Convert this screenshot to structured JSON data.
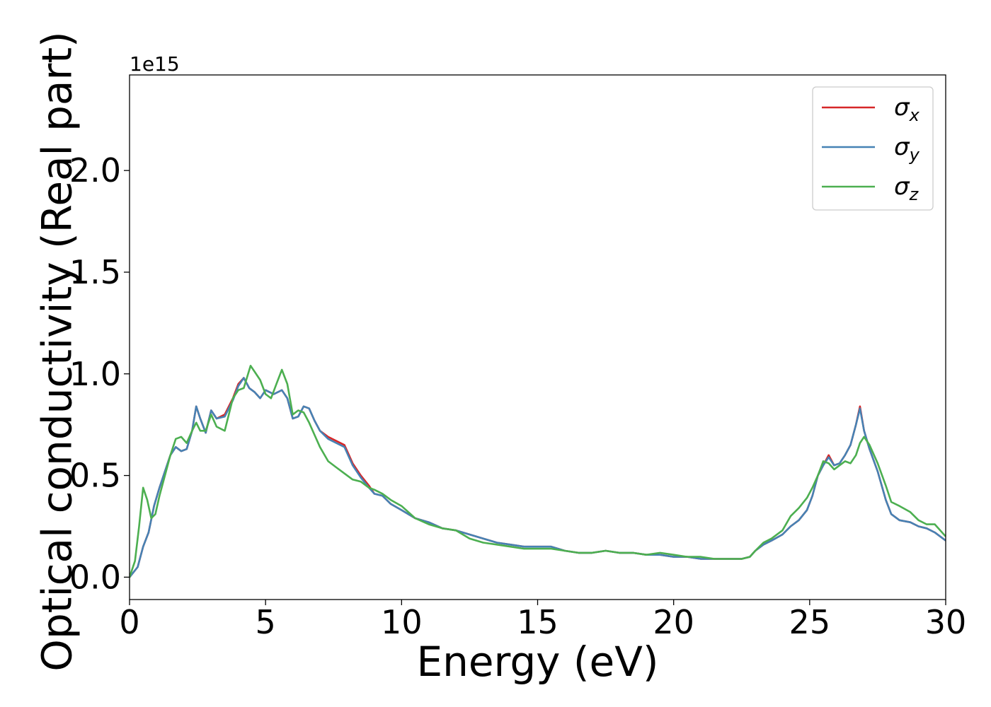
{
  "chart_data": {
    "type": "line",
    "title": "",
    "xlabel": "Energy (eV)",
    "ylabel": "Optical conductivity (Real part)",
    "y_offset_text": "1e15",
    "y_multiplier": 1000000000000000.0,
    "xlim": [
      0,
      30
    ],
    "ylim": [
      -0.11,
      2.47
    ],
    "x_ticks": [
      0,
      5,
      10,
      15,
      20,
      25,
      30
    ],
    "x_tick_labels": [
      "0",
      "5",
      "10",
      "15",
      "20",
      "25",
      "30"
    ],
    "y_ticks": [
      0.0,
      0.5,
      1.0,
      1.5,
      2.0
    ],
    "y_tick_labels": [
      "0.0",
      "0.5",
      "1.0",
      "1.5",
      "2.0"
    ],
    "grid": false,
    "legend_position": "top-right",
    "legend": [
      {
        "symbol": "σ",
        "sub": "x",
        "color": "#d62728"
      },
      {
        "symbol": "σ",
        "sub": "y",
        "color": "#4682b4"
      },
      {
        "symbol": "σ",
        "sub": "z",
        "color": "#4caf50"
      }
    ],
    "series": [
      {
        "color": "#d62728",
        "x": [
          0,
          0.3,
          0.5,
          0.7,
          0.9,
          1.1,
          1.3,
          1.5,
          1.7,
          1.9,
          2.1,
          2.3,
          2.45,
          2.6,
          2.8,
          3.0,
          3.2,
          3.5,
          3.8,
          4.0,
          4.2,
          4.4,
          4.6,
          4.8,
          5.0,
          5.3,
          5.6,
          5.8,
          6.0,
          6.2,
          6.4,
          6.6,
          6.8,
          7.0,
          7.3,
          7.6,
          7.9,
          8.2,
          8.5,
          8.8,
          9.0,
          9.3,
          9.6,
          10.0,
          10.5,
          11.0,
          11.5,
          12.0,
          12.5,
          13.0,
          13.5,
          14.0,
          14.5,
          15.0,
          15.5,
          16.0,
          16.5,
          17.0,
          17.5,
          18.0,
          18.5,
          19.0,
          19.5,
          20.0,
          20.5,
          21.0,
          21.5,
          22.0,
          22.5,
          22.8,
          23.0,
          23.3,
          23.6,
          24.0,
          24.3,
          24.6,
          24.9,
          25.1,
          25.3,
          25.5,
          25.7,
          25.9,
          26.1,
          26.3,
          26.5,
          26.7,
          26.85,
          27.0,
          27.2,
          27.5,
          27.8,
          28.0,
          28.3,
          28.7,
          29.0,
          29.3,
          29.6,
          30.0
        ],
        "y": [
          0.0,
          0.05,
          0.15,
          0.22,
          0.35,
          0.44,
          0.52,
          0.6,
          0.64,
          0.62,
          0.63,
          0.72,
          0.84,
          0.78,
          0.71,
          0.82,
          0.78,
          0.8,
          0.88,
          0.95,
          0.98,
          0.93,
          0.91,
          0.88,
          0.92,
          0.9,
          0.92,
          0.88,
          0.78,
          0.79,
          0.84,
          0.83,
          0.77,
          0.72,
          0.69,
          0.67,
          0.65,
          0.56,
          0.5,
          0.45,
          0.41,
          0.4,
          0.36,
          0.33,
          0.29,
          0.27,
          0.24,
          0.23,
          0.21,
          0.19,
          0.17,
          0.16,
          0.15,
          0.15,
          0.15,
          0.13,
          0.12,
          0.12,
          0.13,
          0.12,
          0.12,
          0.11,
          0.11,
          0.1,
          0.1,
          0.09,
          0.09,
          0.09,
          0.09,
          0.1,
          0.13,
          0.16,
          0.18,
          0.21,
          0.25,
          0.28,
          0.33,
          0.4,
          0.5,
          0.55,
          0.6,
          0.55,
          0.56,
          0.6,
          0.65,
          0.75,
          0.84,
          0.72,
          0.63,
          0.52,
          0.38,
          0.31,
          0.28,
          0.27,
          0.25,
          0.24,
          0.22,
          0.18
        ]
      },
      {
        "color": "#4682b4",
        "x": [
          0,
          0.3,
          0.5,
          0.7,
          0.9,
          1.1,
          1.3,
          1.5,
          1.7,
          1.9,
          2.1,
          2.3,
          2.45,
          2.6,
          2.8,
          3.0,
          3.2,
          3.5,
          3.8,
          4.0,
          4.2,
          4.4,
          4.6,
          4.8,
          5.0,
          5.3,
          5.6,
          5.8,
          6.0,
          6.2,
          6.4,
          6.6,
          6.8,
          7.0,
          7.3,
          7.6,
          7.9,
          8.2,
          8.5,
          8.8,
          9.0,
          9.3,
          9.6,
          10.0,
          10.5,
          11.0,
          11.5,
          12.0,
          12.5,
          13.0,
          13.5,
          14.0,
          14.5,
          15.0,
          15.5,
          16.0,
          16.5,
          17.0,
          17.5,
          18.0,
          18.5,
          19.0,
          19.5,
          20.0,
          20.5,
          21.0,
          21.5,
          22.0,
          22.5,
          22.8,
          23.0,
          23.3,
          23.6,
          24.0,
          24.3,
          24.6,
          24.9,
          25.1,
          25.3,
          25.5,
          25.7,
          25.9,
          26.1,
          26.3,
          26.5,
          26.7,
          26.85,
          27.0,
          27.2,
          27.5,
          27.8,
          28.0,
          28.3,
          28.7,
          29.0,
          29.3,
          29.6,
          30.0
        ],
        "y": [
          0.0,
          0.05,
          0.15,
          0.22,
          0.35,
          0.44,
          0.52,
          0.6,
          0.64,
          0.62,
          0.63,
          0.72,
          0.84,
          0.78,
          0.71,
          0.82,
          0.78,
          0.79,
          0.87,
          0.94,
          0.98,
          0.93,
          0.91,
          0.88,
          0.92,
          0.9,
          0.92,
          0.88,
          0.78,
          0.79,
          0.84,
          0.83,
          0.77,
          0.72,
          0.68,
          0.66,
          0.64,
          0.55,
          0.49,
          0.44,
          0.41,
          0.4,
          0.36,
          0.33,
          0.29,
          0.27,
          0.24,
          0.23,
          0.21,
          0.19,
          0.17,
          0.16,
          0.15,
          0.15,
          0.15,
          0.13,
          0.12,
          0.12,
          0.13,
          0.12,
          0.12,
          0.11,
          0.11,
          0.1,
          0.1,
          0.09,
          0.09,
          0.09,
          0.09,
          0.1,
          0.13,
          0.16,
          0.18,
          0.21,
          0.25,
          0.28,
          0.33,
          0.4,
          0.5,
          0.55,
          0.59,
          0.55,
          0.56,
          0.6,
          0.65,
          0.75,
          0.83,
          0.72,
          0.63,
          0.52,
          0.38,
          0.31,
          0.28,
          0.27,
          0.25,
          0.24,
          0.22,
          0.18
        ]
      },
      {
        "color": "#4caf50",
        "x": [
          0,
          0.2,
          0.35,
          0.5,
          0.65,
          0.8,
          0.95,
          1.1,
          1.3,
          1.5,
          1.7,
          1.9,
          2.1,
          2.3,
          2.45,
          2.6,
          2.8,
          3.0,
          3.2,
          3.5,
          3.8,
          4.0,
          4.2,
          4.45,
          4.6,
          4.8,
          5.0,
          5.2,
          5.4,
          5.6,
          5.8,
          6.0,
          6.2,
          6.4,
          6.6,
          6.8,
          7.0,
          7.3,
          7.6,
          7.9,
          8.2,
          8.5,
          8.8,
          9.0,
          9.3,
          9.6,
          10.0,
          10.5,
          11.0,
          11.5,
          12.0,
          12.5,
          13.0,
          13.5,
          14.0,
          14.5,
          15.0,
          15.5,
          16.0,
          16.5,
          17.0,
          17.5,
          18.0,
          18.5,
          19.0,
          19.5,
          20.0,
          20.5,
          21.0,
          21.5,
          22.0,
          22.5,
          22.8,
          23.0,
          23.3,
          23.6,
          24.0,
          24.3,
          24.6,
          24.9,
          25.1,
          25.3,
          25.5,
          25.7,
          25.9,
          26.1,
          26.3,
          26.5,
          26.7,
          26.85,
          27.0,
          27.2,
          27.5,
          27.8,
          28.0,
          28.3,
          28.7,
          29.0,
          29.3,
          29.6,
          30.0
        ],
        "y": [
          0.0,
          0.08,
          0.25,
          0.44,
          0.38,
          0.29,
          0.31,
          0.4,
          0.5,
          0.6,
          0.68,
          0.69,
          0.66,
          0.72,
          0.76,
          0.72,
          0.72,
          0.8,
          0.74,
          0.72,
          0.88,
          0.92,
          0.93,
          1.04,
          1.01,
          0.97,
          0.9,
          0.88,
          0.95,
          1.02,
          0.95,
          0.8,
          0.82,
          0.81,
          0.76,
          0.7,
          0.64,
          0.57,
          0.54,
          0.51,
          0.48,
          0.47,
          0.44,
          0.43,
          0.41,
          0.38,
          0.35,
          0.29,
          0.26,
          0.24,
          0.23,
          0.19,
          0.17,
          0.16,
          0.15,
          0.14,
          0.14,
          0.14,
          0.13,
          0.12,
          0.12,
          0.13,
          0.12,
          0.12,
          0.11,
          0.12,
          0.11,
          0.1,
          0.1,
          0.09,
          0.09,
          0.09,
          0.1,
          0.13,
          0.17,
          0.19,
          0.23,
          0.3,
          0.34,
          0.39,
          0.44,
          0.5,
          0.57,
          0.56,
          0.53,
          0.55,
          0.57,
          0.56,
          0.6,
          0.66,
          0.69,
          0.65,
          0.56,
          0.45,
          0.37,
          0.35,
          0.32,
          0.28,
          0.26,
          0.26,
          0.2
        ]
      }
    ]
  }
}
